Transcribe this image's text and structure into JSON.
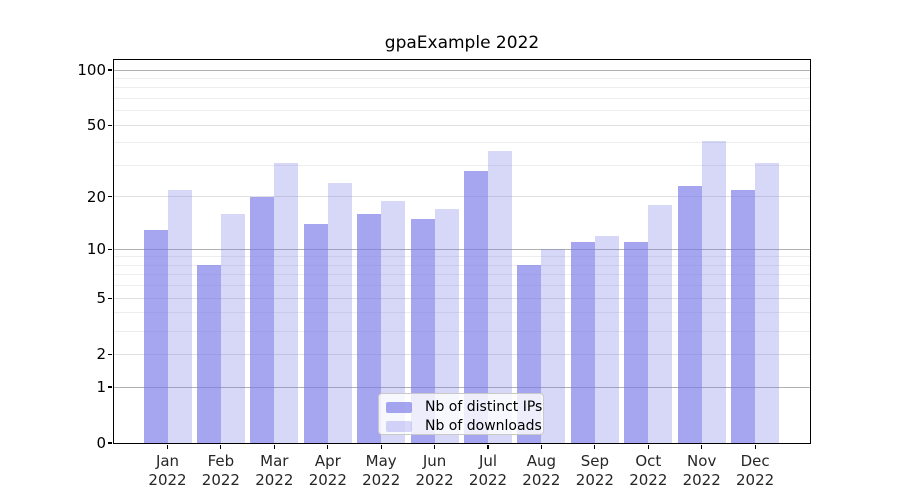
{
  "chart_data": {
    "type": "bar",
    "title": "gpaExample 2022",
    "categories": [
      "Jan 2022",
      "Feb 2022",
      "Mar 2022",
      "Apr 2022",
      "May 2022",
      "Jun 2022",
      "Jul 2022",
      "Aug 2022",
      "Sep 2022",
      "Oct 2022",
      "Nov 2022",
      "Dec 2022"
    ],
    "series": [
      {
        "name": "Nb of distinct IPs",
        "values": [
          13,
          8,
          20,
          14,
          16,
          15,
          28,
          8,
          11,
          11,
          23,
          22
        ],
        "color": "rgba(121,121,233,0.67)"
      },
      {
        "name": "Nb of downloads",
        "values": [
          22,
          16,
          31,
          24,
          19,
          17,
          36,
          10,
          12,
          18,
          41,
          31
        ],
        "color": "rgba(121,121,233,0.30)"
      }
    ],
    "xlabel": "",
    "ylabel": "",
    "y_scale": "log10(value+1)",
    "y_ticks": [
      0,
      1,
      2,
      5,
      10,
      20,
      50,
      100
    ],
    "y_major_gridlines": [
      1,
      10,
      100
    ],
    "y_minor_gridlines": [
      3,
      4,
      6,
      7,
      8,
      9,
      30,
      40,
      60,
      70,
      80,
      90
    ],
    "ylim": [
      0,
      113
    ],
    "grid": "horizontal",
    "legend_position": "bottom-center",
    "colors": {
      "bar_ips": "rgba(121,121,233,0.67)",
      "bar_downloads": "rgba(121,121,233,0.30)",
      "major_gridline": "#b0b0b0",
      "mid_gridline": "#e0e0e0",
      "minor_gridline": "#ededed",
      "axis": "#000000",
      "legend_border": "#c9c9c9",
      "legend_background": "rgba(255,255,255,0.8)"
    }
  }
}
